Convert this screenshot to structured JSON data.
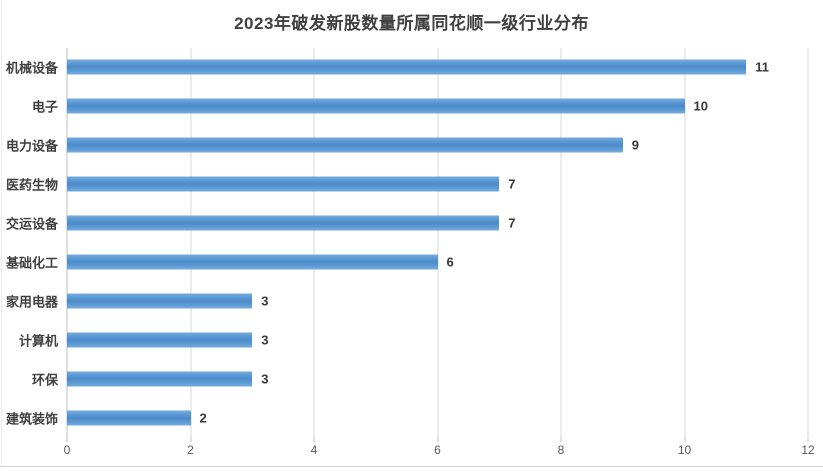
{
  "chart_data": {
    "type": "bar",
    "orientation": "horizontal",
    "title": "2023年破发新股数量所属同花顺一级行业分布",
    "categories": [
      "机械设备",
      "电子",
      "电力设备",
      "医药生物",
      "交运设备",
      "基础化工",
      "家用电器",
      "计算机",
      "环保",
      "建筑装饰"
    ],
    "values": [
      11,
      10,
      9,
      7,
      7,
      6,
      3,
      3,
      3,
      2
    ],
    "xlabel": "",
    "ylabel": "",
    "xlim": [
      0,
      12
    ],
    "xticks": [
      0,
      2,
      4,
      6,
      8,
      10,
      12
    ],
    "grid": "vertical-gridlines-on",
    "legend": "none",
    "data_labels_shown": true
  },
  "colors": {
    "background": "#FFFFFF",
    "bar": "#5B9BD5",
    "bar_edge_light": "#79ABDE",
    "bar_mid_dark": "#4E89C8",
    "title_text": "#404040",
    "category_text": "#404040",
    "value_text": "#363636",
    "tick_text": "#595959",
    "gridline": "#D9D9D9",
    "axis_line": "#BFBFBF",
    "chart_border": "#CBD1D8",
    "chart_border_light": "#ECECEC"
  }
}
